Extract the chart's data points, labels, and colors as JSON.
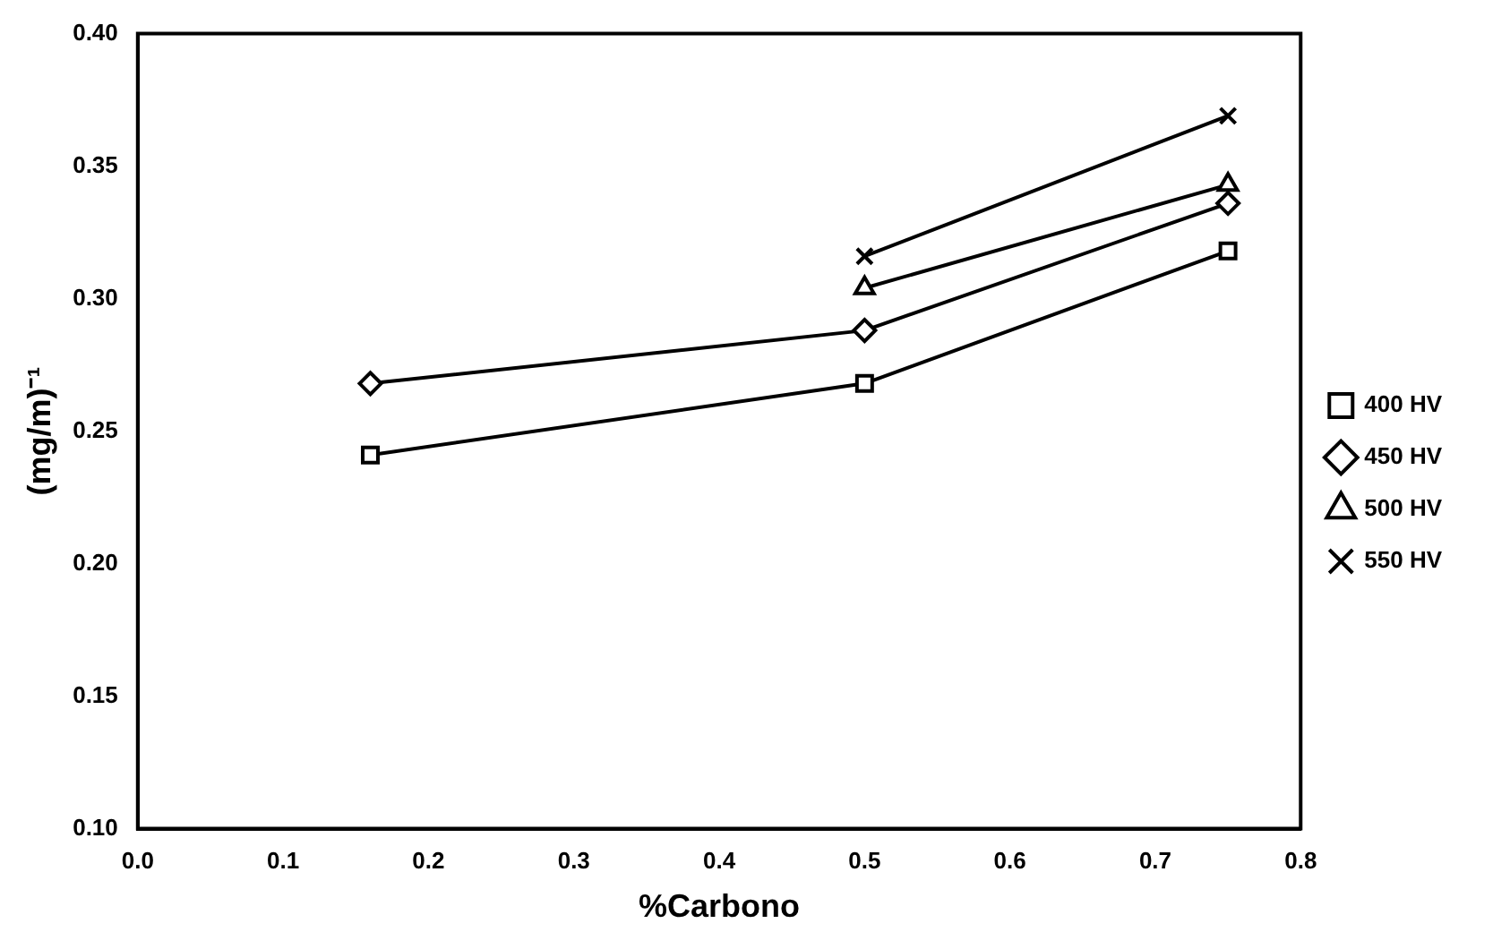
{
  "chart_data": {
    "type": "line",
    "xlabel": "%Carbono",
    "ylabel": "(mg/m)⁻¹",
    "xlim": [
      0.0,
      0.8
    ],
    "xticks": [
      {
        "value": 0,
        "label": "0.0"
      },
      0.1,
      0.2,
      0.3,
      0.4,
      0.5,
      0.6,
      0.7,
      0.8
    ],
    "ylim": [
      0.1,
      0.4
    ],
    "yticks": [
      {
        "value": 0.1,
        "label": "0.10"
      },
      0.15,
      {
        "value": 0.2,
        "label": "0.20"
      },
      0.25,
      {
        "value": 0.3,
        "label": "0.30"
      },
      0.35,
      {
        "value": 0.4,
        "label": "0.40"
      }
    ],
    "grid": false,
    "legend": "right",
    "line_style": "solid",
    "series": [
      {
        "name": "400 HV",
        "color": "#000000",
        "marker": "square",
        "x": [
          0.16,
          0.5,
          0.75
        ],
        "values": [
          0.241,
          0.268,
          0.318
        ]
      },
      {
        "name": "450 HV",
        "color": "#000000",
        "marker": "diamond",
        "x": [
          0.16,
          0.5,
          0.75
        ],
        "values": [
          0.268,
          0.288,
          0.336
        ]
      },
      {
        "name": "500 HV",
        "color": "#000000",
        "marker": "triangle",
        "x": [
          0.5,
          0.75
        ],
        "values": [
          0.304,
          0.343
        ]
      },
      {
        "name": "550 HV",
        "color": "#000000",
        "marker": "cross",
        "x": [
          0.5,
          0.75
        ],
        "values": [
          0.316,
          0.369
        ]
      }
    ]
  }
}
